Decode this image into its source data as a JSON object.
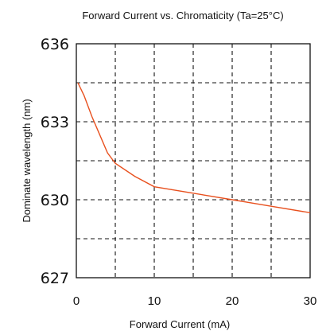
{
  "chart_data": {
    "type": "line",
    "title": "Forward Current vs. Chromaticity (Ta=25°C)",
    "xlabel": "Forward  Current  (mA)",
    "ylabel": "Dominate wavelength (nm)",
    "xlim": [
      0,
      30
    ],
    "ylim": [
      627,
      636
    ],
    "x_ticks": [
      "0",
      "10",
      "20",
      "30"
    ],
    "y_ticks": [
      "627",
      "630",
      "633",
      "636"
    ],
    "grid": true,
    "line_color": "#e8501e",
    "series": [
      {
        "x": [
          0.2,
          1,
          2,
          3,
          4,
          5,
          7.5,
          10,
          15,
          20,
          25,
          30
        ],
        "values": [
          634.5,
          634.0,
          633.2,
          632.5,
          631.8,
          631.4,
          630.9,
          630.5,
          630.25,
          630.0,
          629.75,
          629.5
        ]
      }
    ]
  }
}
